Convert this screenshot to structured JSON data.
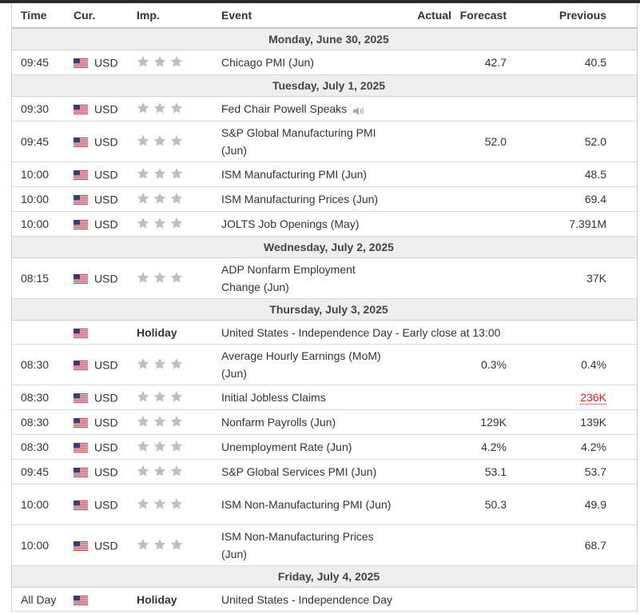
{
  "headers": {
    "time": "Time",
    "currency": "Cur.",
    "importance": "Imp.",
    "event": "Event",
    "actual": "Actual",
    "forecast": "Forecast",
    "previous": "Previous"
  },
  "colors": {
    "flag_red": "#b22234",
    "flag_blue": "#3c3b6e",
    "star_gray": "#bfbfbf",
    "negative_red": "#e0211d"
  },
  "days": [
    {
      "date": "Monday, June 30, 2025",
      "events": [
        {
          "time": "09:45",
          "currency": "USD",
          "event": "Chicago PMI (Jun)",
          "actual": "",
          "forecast": "42.7",
          "previous": "40.5",
          "tall": false
        }
      ]
    },
    {
      "date": "Tuesday, July 1, 2025",
      "events": [
        {
          "time": "09:30",
          "currency": "USD",
          "event": "Fed Chair Powell Speaks",
          "actual": "",
          "forecast": "",
          "previous": "",
          "tall": false,
          "icon": "speaker-icon"
        },
        {
          "time": "09:45",
          "currency": "USD",
          "event": "S&P Global Manufacturing PMI (Jun)",
          "actual": "",
          "forecast": "52.0",
          "previous": "52.0",
          "tall": true
        },
        {
          "time": "10:00",
          "currency": "USD",
          "event": "ISM Manufacturing PMI (Jun)",
          "actual": "",
          "forecast": "",
          "previous": "48.5",
          "tall": false
        },
        {
          "time": "10:00",
          "currency": "USD",
          "event": "ISM Manufacturing Prices (Jun)",
          "actual": "",
          "forecast": "",
          "previous": "69.4",
          "tall": false
        },
        {
          "time": "10:00",
          "currency": "USD",
          "event": "JOLTS Job Openings (May)",
          "actual": "",
          "forecast": "",
          "previous": "7.391M",
          "tall": false
        }
      ]
    },
    {
      "date": "Wednesday, July 2, 2025",
      "events": [
        {
          "time": "08:15",
          "currency": "USD",
          "event": "ADP Nonfarm Employment Change (Jun)",
          "actual": "",
          "forecast": "",
          "previous": "37K",
          "tall": true
        }
      ]
    },
    {
      "date": "Thursday, July 3, 2025",
      "events": [
        {
          "holiday": true,
          "time": "",
          "label": "Holiday",
          "event": "United States - Independence Day - Early close at 13:00"
        },
        {
          "time": "08:30",
          "currency": "USD",
          "event": "Average Hourly Earnings (MoM) (Jun)",
          "actual": "",
          "forecast": "0.3%",
          "previous": "0.4%",
          "tall": true
        },
        {
          "time": "08:30",
          "currency": "USD",
          "event": "Initial Jobless Claims",
          "actual": "",
          "forecast": "",
          "previous": "236K",
          "previous_negative": true,
          "tall": false
        },
        {
          "time": "08:30",
          "currency": "USD",
          "event": "Nonfarm Payrolls (Jun)",
          "actual": "",
          "forecast": "129K",
          "previous": "139K",
          "tall": false
        },
        {
          "time": "08:30",
          "currency": "USD",
          "event": "Unemployment Rate (Jun)",
          "actual": "",
          "forecast": "4.2%",
          "previous": "4.2%",
          "tall": false
        },
        {
          "time": "09:45",
          "currency": "USD",
          "event": "S&P Global Services PMI (Jun)",
          "actual": "",
          "forecast": "53.1",
          "previous": "53.7",
          "tall": false
        },
        {
          "time": "10:00",
          "currency": "USD",
          "event": "ISM Non-Manufacturing PMI (Jun)",
          "actual": "",
          "forecast": "50.3",
          "previous": "49.9",
          "tall": true
        },
        {
          "time": "10:00",
          "currency": "USD",
          "event": "ISM Non-Manufacturing Prices (Jun)",
          "actual": "",
          "forecast": "",
          "previous": "68.7",
          "tall": true
        }
      ]
    },
    {
      "date": "Friday, July 4, 2025",
      "events": [
        {
          "holiday": true,
          "time": "All Day",
          "label": "Holiday",
          "event": "United States - Independence Day"
        }
      ]
    }
  ]
}
